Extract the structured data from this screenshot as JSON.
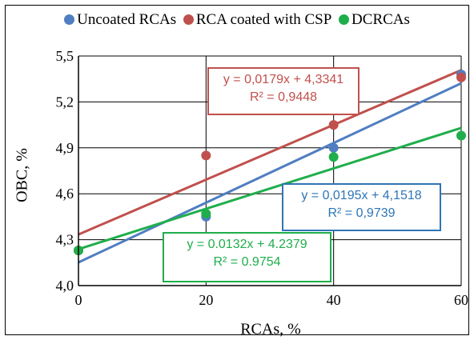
{
  "chart_data": {
    "type": "scatter",
    "xlabel": "RCAs, %",
    "ylabel": "OBC, %",
    "xlim": [
      0,
      60
    ],
    "ylim": [
      4.0,
      5.5
    ],
    "x_ticks": [
      "0",
      "20",
      "40",
      "60"
    ],
    "y_ticks": [
      "4,0",
      "4,3",
      "4,6",
      "4,9",
      "5,2",
      "5,5"
    ],
    "grid": true,
    "legend_position": "top",
    "series": [
      {
        "name": "Uncoated RCAs",
        "color": "#4F7EC1",
        "points": [
          {
            "x": 0,
            "y": 4.23
          },
          {
            "x": 20,
            "y": 4.45
          },
          {
            "x": 40,
            "y": 4.9
          },
          {
            "x": 60,
            "y": 5.38
          }
        ],
        "trend": {
          "slope": 0.0195,
          "intercept": 4.1518
        }
      },
      {
        "name": "RCA coated with CSP",
        "color": "#C0504D",
        "points": [
          {
            "x": 0,
            "y": 4.23
          },
          {
            "x": 20,
            "y": 4.85
          },
          {
            "x": 40,
            "y": 5.05
          },
          {
            "x": 60,
            "y": 5.36
          }
        ],
        "trend": {
          "slope": 0.0179,
          "intercept": 4.3341
        }
      },
      {
        "name": "DCRCAs",
        "color": "#1FAE4B",
        "points": [
          {
            "x": 0,
            "y": 4.23
          },
          {
            "x": 20,
            "y": 4.47
          },
          {
            "x": 40,
            "y": 4.84
          },
          {
            "x": 60,
            "y": 4.98
          }
        ],
        "trend": {
          "slope": 0.0132,
          "intercept": 4.2379
        }
      }
    ],
    "trendlines": {
      "red": {
        "equation": "y = 0,0179x + 4,3341",
        "r2": "R² = 0,9448",
        "color": "#C0504D"
      },
      "blue": {
        "equation": "y = 0,0195x + 4,1518",
        "r2": "R² = 0,9739",
        "color": "#2E75B6"
      },
      "green": {
        "equation": "y = 0.0132x + 4.2379",
        "r2": "R² = 0.9754",
        "color": "#1FAE4B"
      }
    }
  }
}
